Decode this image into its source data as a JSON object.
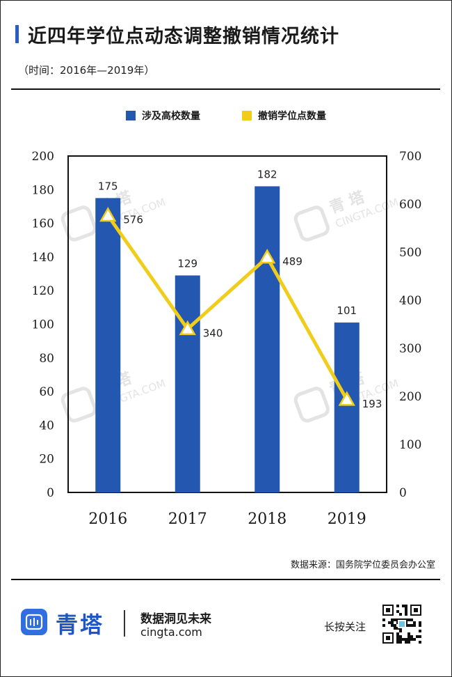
{
  "header": {
    "title": "近四年学位点动态调整撤销情况统计",
    "subtitle": "（时间：2016年—2019年）"
  },
  "chart_data": {
    "type": "bar+line",
    "categories": [
      "2016",
      "2017",
      "2018",
      "2019"
    ],
    "series": [
      {
        "name": "涉及高校数量",
        "type": "bar",
        "axis": "left",
        "color": "#2457b0",
        "values": [
          175,
          129,
          182,
          101
        ]
      },
      {
        "name": "撤销学位点数量",
        "type": "line",
        "axis": "right",
        "color": "#f0cd1a",
        "values": [
          576,
          340,
          489,
          193
        ]
      }
    ],
    "y_left": {
      "min": 0,
      "max": 200,
      "ticks": [
        "0",
        "20",
        "40",
        "60",
        "80",
        "100",
        "120",
        "140",
        "160",
        "180",
        "200"
      ]
    },
    "y_right": {
      "min": 0,
      "max": 700,
      "ticks": [
        "0",
        "100",
        "200",
        "300",
        "400",
        "500",
        "600",
        "700"
      ]
    },
    "legend_position": "top-center",
    "grid": false
  },
  "watermark": {
    "brand": "青 塔",
    "site": "CINGTA.COM"
  },
  "source": "数据来源：国务院学位委员会办公室",
  "footer": {
    "brand": "青塔",
    "slogan": "数据洞见未来",
    "site": "cingta.com",
    "press_prompt": "长按关注",
    "logo_icon": "cingta-logo-icon",
    "qr_icon": "qr-code-icon"
  }
}
